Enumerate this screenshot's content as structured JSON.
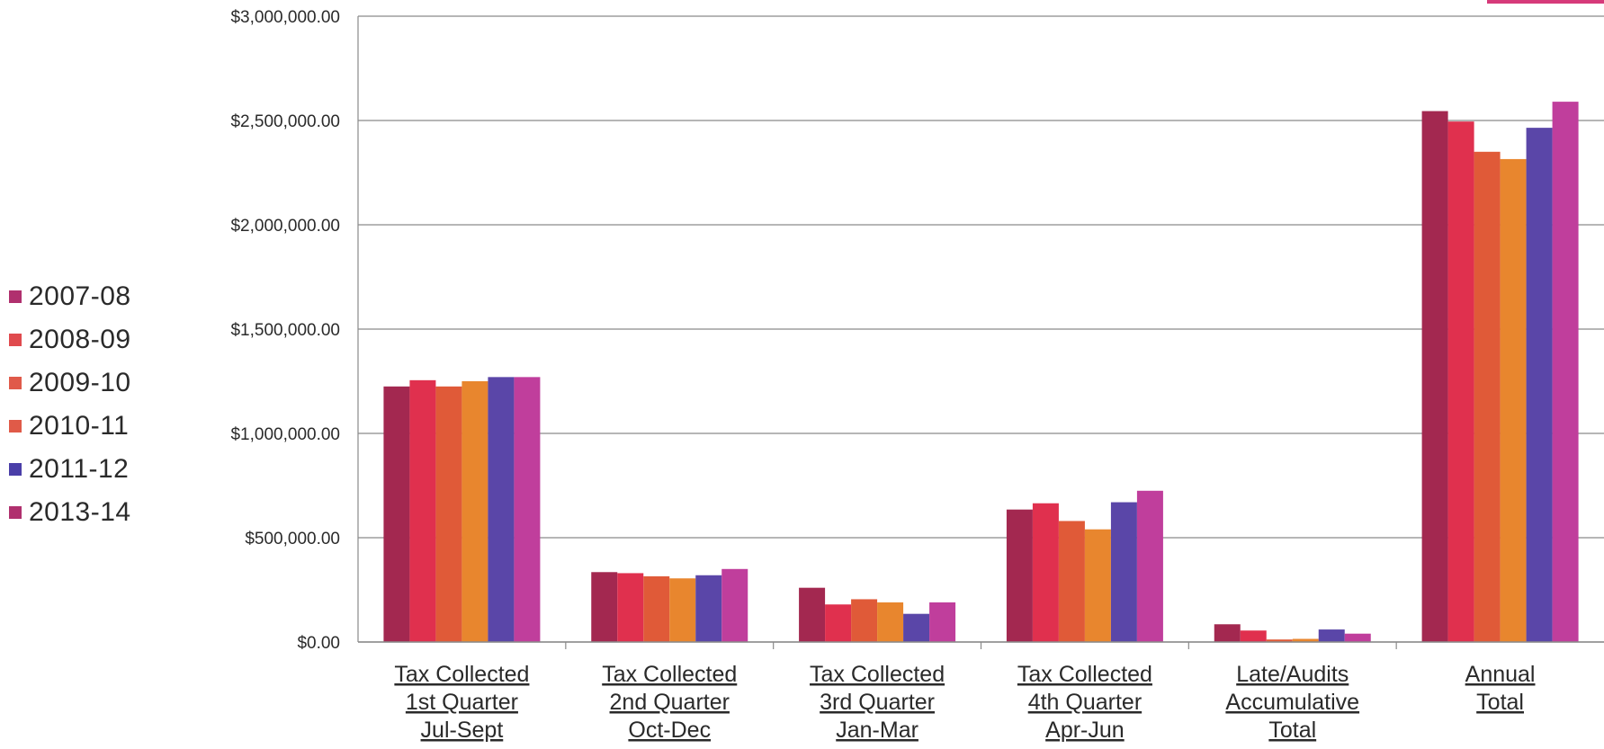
{
  "chart_data": {
    "type": "bar",
    "title": "",
    "xlabel": "",
    "ylabel": "",
    "ylim": [
      0,
      3000000
    ],
    "yticks": [
      0,
      500000,
      1000000,
      1500000,
      2000000,
      2500000,
      3000000
    ],
    "ytick_labels": [
      "$0.00",
      "$500,000.00",
      "$1,000,000.00",
      "$1,500,000.00",
      "$2,000,000.00",
      "$2,500,000.00",
      "$3,000,000.00"
    ],
    "grid": true,
    "legend_position": "left",
    "categories": [
      [
        "Tax Collected",
        "1st Quarter",
        "Jul-Sept"
      ],
      [
        "Tax Collected",
        "2nd Quarter",
        "Oct-Dec"
      ],
      [
        "Tax Collected",
        "3rd Quarter",
        "Jan-Mar"
      ],
      [
        "Tax Collected",
        "4th Quarter",
        "Apr-Jun"
      ],
      [
        "Late/Audits",
        "Accumulative",
        "Total"
      ],
      [
        "Annual",
        "Total"
      ]
    ],
    "series": [
      {
        "name": "2007-08",
        "color": "#a32850",
        "values": [
          1225000,
          335000,
          260000,
          635000,
          85000,
          2545000
        ]
      },
      {
        "name": "2008-09",
        "color": "#e0304e",
        "values": [
          1255000,
          330000,
          180000,
          665000,
          55000,
          2495000
        ]
      },
      {
        "name": "2009-10",
        "color": "#e05a38",
        "values": [
          1225000,
          315000,
          205000,
          580000,
          12000,
          2350000
        ]
      },
      {
        "name": "2010-11",
        "color": "#e8862e",
        "values": [
          1250000,
          305000,
          190000,
          540000,
          15000,
          2315000
        ]
      },
      {
        "name": "2011-12",
        "color": "#5a46a8",
        "values": [
          1270000,
          320000,
          135000,
          670000,
          60000,
          2465000
        ]
      },
      {
        "name": "2013-14",
        "color": "#c03e9c",
        "values": [
          1270000,
          350000,
          190000,
          725000,
          40000,
          2590000
        ]
      }
    ],
    "legend_swatch_colors": [
      "#b0306e",
      "#e04a4e",
      "#e05a4a",
      "#e05a48",
      "#4a3ea8",
      "#b0306e"
    ]
  }
}
